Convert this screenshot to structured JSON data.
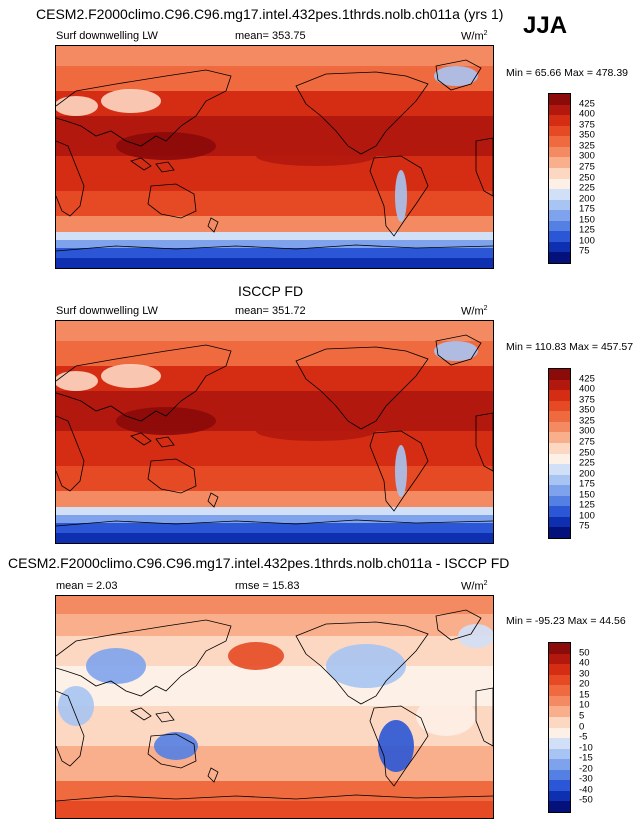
{
  "season": "JJA",
  "panels": [
    {
      "title": "CESM2.F2000climo.C96.C96.mg17.intel.432pes.1thrds.nolb.ch011a (yrs 1)",
      "variable": "Surf downwelling LW",
      "mean_text": "mean= 353.75",
      "units": "W/m",
      "units_exp": "2",
      "minmax_text": "Min =  65.66 Max = 478.39",
      "levels": [
        "425",
        "400",
        "375",
        "350",
        "325",
        "300",
        "275",
        "250",
        "225",
        "200",
        "175",
        "150",
        "125",
        "100",
        "75"
      ],
      "colors": [
        "#8b0a0a",
        "#b2180e",
        "#d42d14",
        "#e54a24",
        "#ef6a3e",
        "#f48a61",
        "#f9ae8c",
        "#fcd7c2",
        "#fdf0e7",
        "#d2e0f7",
        "#a7c4f2",
        "#7ea3ec",
        "#547fe3",
        "#2b57d6",
        "#0d2fb0",
        "#04117a"
      ]
    },
    {
      "title": "ISCCP FD",
      "variable": "Surf downwelling LW",
      "mean_text": "mean= 351.72",
      "units": "W/m",
      "units_exp": "2",
      "minmax_text": "Min = 110.83 Max = 457.57",
      "levels": [
        "425",
        "400",
        "375",
        "350",
        "325",
        "300",
        "275",
        "250",
        "225",
        "200",
        "175",
        "150",
        "125",
        "100",
        "75"
      ],
      "colors": [
        "#8b0a0a",
        "#b2180e",
        "#d42d14",
        "#e54a24",
        "#ef6a3e",
        "#f48a61",
        "#f9ae8c",
        "#fcd7c2",
        "#fdf0e7",
        "#d2e0f7",
        "#a7c4f2",
        "#7ea3ec",
        "#547fe3",
        "#2b57d6",
        "#0d2fb0",
        "#04117a"
      ]
    },
    {
      "title": "CESM2.F2000climo.C96.C96.mg17.intel.432pes.1thrds.nolb.ch011a - ISCCP FD",
      "mean_text": "mean =   2.03",
      "rmse_text": "rmse =   15.83",
      "units": "W/m",
      "units_exp": "2",
      "minmax_text": "Min = -95.23 Max =  44.56",
      "levels": [
        "50",
        "40",
        "30",
        "20",
        "15",
        "10",
        "5",
        "0",
        "-5",
        "-10",
        "-15",
        "-20",
        "-30",
        "-40",
        "-50"
      ],
      "colors": [
        "#8b0a0a",
        "#b2180e",
        "#d42d14",
        "#e54a24",
        "#ef6a3e",
        "#f48a61",
        "#f9ae8c",
        "#fcd7c2",
        "#fdf0e7",
        "#d2e0f7",
        "#a7c4f2",
        "#7ea3ec",
        "#547fe3",
        "#2b57d6",
        "#0d2fb0",
        "#04117a"
      ]
    }
  ]
}
